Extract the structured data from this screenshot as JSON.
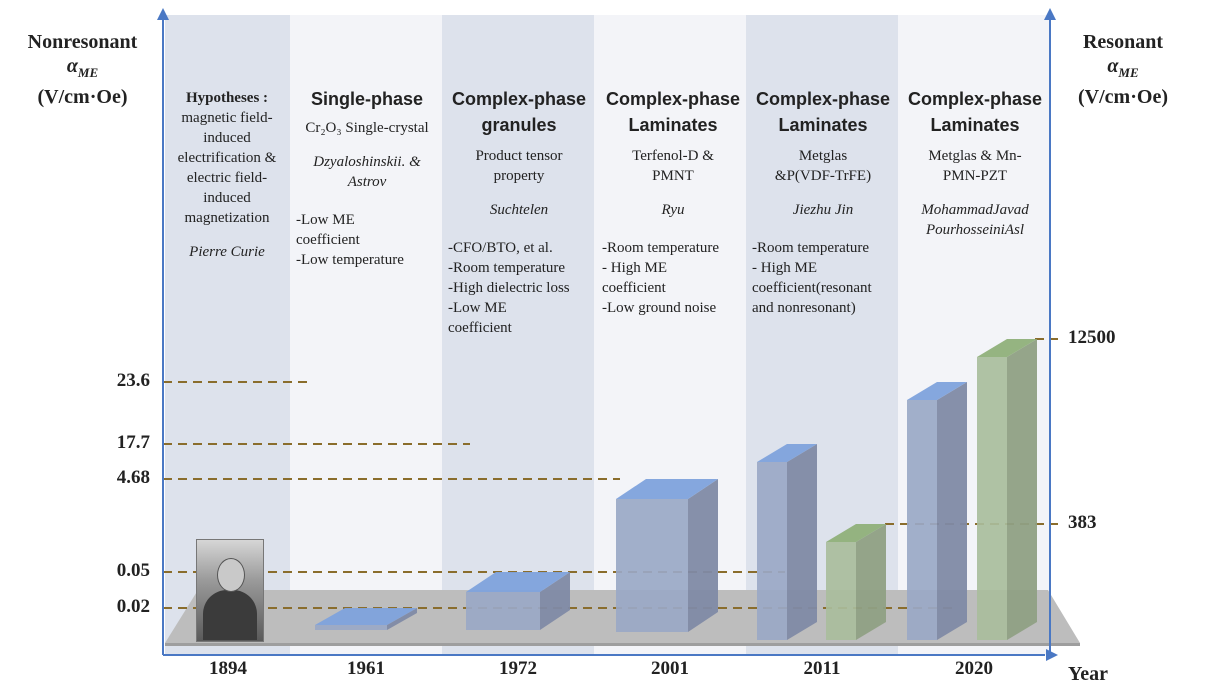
{
  "axes": {
    "left_title": [
      "Nonresonant",
      "α",
      "ME",
      "(V/cm·Oe)"
    ],
    "right_title": [
      "Resonant",
      "α",
      "ME",
      "(V/cm·Oe)"
    ],
    "x_title": "Year"
  },
  "left_ticks": [
    "23.6",
    "17.7",
    "4.68",
    "0.05",
    "0.02"
  ],
  "right_ticks": [
    "12500",
    "383"
  ],
  "columns": [
    {
      "year": "1894",
      "head": "Hypotheses :",
      "desc": [
        "magnetic field-",
        "induced",
        "electrification &",
        "electric field-",
        "induced",
        "magnetization"
      ],
      "author": "Pierre Curie",
      "props": []
    },
    {
      "year": "1961",
      "title": [
        "Single-phase"
      ],
      "desc": [
        "Cr₂O₃ Single-crystal"
      ],
      "author_lines": [
        "Dzyaloshinskii. &",
        "Astrov"
      ],
      "props": [
        "-Low ME",
        "coefficient",
        "-Low temperature"
      ]
    },
    {
      "year": "1972",
      "title": [
        "Complex-phase",
        "granules"
      ],
      "desc": [
        "Product tensor",
        "property"
      ],
      "author_lines": [
        "Suchtelen"
      ],
      "props": [
        "-CFO/BTO, et al.",
        "-Room temperature",
        "-High dielectric loss",
        "-Low ME",
        "coefficient"
      ]
    },
    {
      "year": "2001",
      "title": [
        "Complex-phase",
        "Laminates"
      ],
      "desc": [
        "Terfenol-D &",
        "PMNT"
      ],
      "author_lines": [
        "Ryu"
      ],
      "props": [
        "-Room temperature",
        "- High ME",
        "coefficient",
        "-Low ground noise"
      ]
    },
    {
      "year": "2011",
      "title": [
        "Complex-phase",
        "Laminates"
      ],
      "desc": [
        "Metglas",
        "&P(VDF-TrFE)"
      ],
      "author_lines": [
        "Jiezhu Jin"
      ],
      "props": [
        "-Room temperature",
        "- High ME",
        "coefficient(resonant",
        "and nonresonant)"
      ]
    },
    {
      "year": "2020",
      "title": [
        "Complex-phase",
        "Laminates"
      ],
      "desc": [
        "Metglas & Mn-",
        "PMN-PZT"
      ],
      "author_lines": [
        "MohammadJavad",
        "PourhosseiniAsl"
      ],
      "props": []
    }
  ],
  "chart_data": {
    "type": "bar",
    "categories": [
      "1894",
      "1961",
      "1972",
      "2001",
      "2011",
      "2020"
    ],
    "series": [
      {
        "name": "",
        "values": [
          null,
          0.02,
          0.05,
          4.68,
          17.7,
          23.6
        ],
        "color": "#8fa0c2"
      },
      {
        "name": "",
        "values": [
          null,
          null,
          null,
          null,
          383,
          12500
        ],
        "color": "#9db88f"
      }
    ],
    "xlabel": "Year",
    "ylabel_left": "Nonresonant αME (V/cm·Oe)",
    "ylabel_right": "Resonant αME (V/cm·Oe)",
    "left_axis_ticks": [
      0.02,
      0.05,
      4.68,
      17.7,
      23.6
    ],
    "right_axis_ticks": [
      383,
      12500
    ],
    "grid": false
  }
}
